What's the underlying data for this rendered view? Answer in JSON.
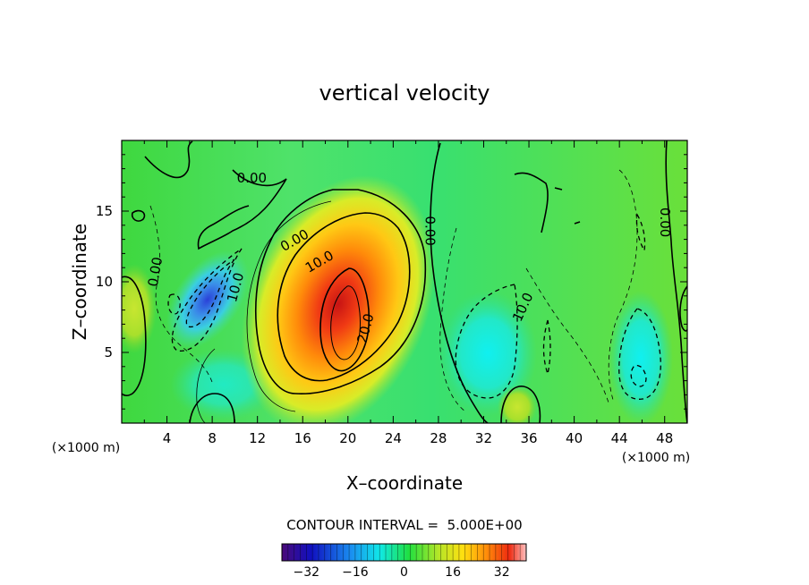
{
  "chart_data": {
    "type": "heatmap",
    "title": "vertical velocity",
    "xlabel": "X–coordinate",
    "ylabel": "Z–coordinate",
    "x_unit_left": "(×1000 m)",
    "x_unit_right": "(×1000 m)",
    "xlim": [
      0,
      50
    ],
    "ylim": [
      0,
      20
    ],
    "x_ticks": [
      4,
      8,
      12,
      16,
      20,
      24,
      28,
      32,
      36,
      40,
      44,
      48
    ],
    "x_tick_labels": [
      "4",
      "8",
      "12",
      "16",
      "20",
      "24",
      "28",
      "32",
      "36",
      "40",
      "44",
      "48"
    ],
    "y_ticks": [
      5,
      10,
      15
    ],
    "y_tick_labels": [
      "5",
      "10",
      "15"
    ],
    "contour_interval_text": "CONTOUR INTERVAL =  5.000E+00",
    "contour_labels": [
      {
        "text": "0.00",
        "x": 11.5,
        "y": 17.3,
        "angle": 0
      },
      {
        "text": "0.00",
        "x": 15.3,
        "y": 12.9,
        "angle": -30
      },
      {
        "text": "10.0",
        "x": 17.5,
        "y": 11.4,
        "angle": -30
      },
      {
        "text": "0.00",
        "x": 3.0,
        "y": 10.7,
        "angle": -80
      },
      {
        "text": "10.0",
        "x": 10.1,
        "y": 9.6,
        "angle": -75
      },
      {
        "text": "20.0",
        "x": 21.6,
        "y": 6.7,
        "angle": -75
      },
      {
        "text": "0.00",
        "x": 27.2,
        "y": 13.6,
        "angle": 90
      },
      {
        "text": "10.0",
        "x": 35.5,
        "y": 8.2,
        "angle": -65
      },
      {
        "text": "0.00",
        "x": 48.0,
        "y": 14.2,
        "angle": 90
      }
    ],
    "features": [
      {
        "name": "updraft-core",
        "x": 19.5,
        "y": 6.0,
        "peak": 30
      },
      {
        "name": "downdraft-west",
        "x": 8.5,
        "y": 9.5,
        "peak": -22
      },
      {
        "name": "downdraft-east",
        "x": 33.0,
        "y": 6.5,
        "peak": -12
      },
      {
        "name": "downdraft-far-east",
        "x": 46.0,
        "y": 4.0,
        "peak": -14
      }
    ],
    "colorbar": {
      "min": -40,
      "max": 40,
      "ticks": [
        -32,
        -16,
        0,
        16,
        32
      ],
      "tick_labels": [
        "−32",
        "−16",
        "0",
        "16",
        "32"
      ]
    }
  }
}
